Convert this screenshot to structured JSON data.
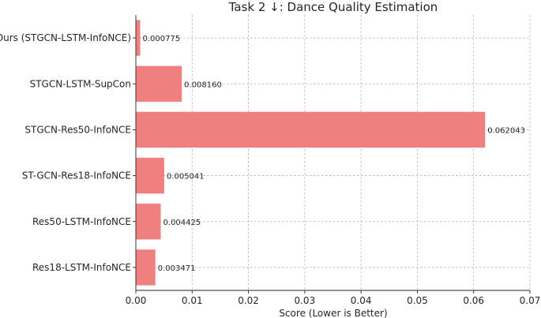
{
  "chart_data": {
    "type": "bar",
    "orientation": "horizontal",
    "title": "Task 2 ↓: Dance Quality Estimation",
    "xlabel": "Score  (Lower is Better)",
    "ylabel": "",
    "xlim": [
      0,
      0.07
    ],
    "xticks": [
      "0.00",
      "0.01",
      "0.02",
      "0.03",
      "0.04",
      "0.05",
      "0.06",
      "0.07"
    ],
    "grid": true,
    "bar_color": "#f08080",
    "categories": [
      "Ours (STGCN-LSTM-InfoNCE)",
      "STGCN-LSTM-SupCon",
      "STGCN-Res50-InfoNCE",
      "ST-GCN-Res18-InfoNCE",
      "Res50-LSTM-InfoNCE",
      "Res18-LSTM-InfoNCE"
    ],
    "values": [
      0.000775,
      0.00816,
      0.062043,
      0.005041,
      0.004425,
      0.003471
    ],
    "value_labels": [
      "0.000775",
      "0.008160",
      "0.062043",
      "0.005041",
      "0.004425",
      "0.003471"
    ]
  }
}
